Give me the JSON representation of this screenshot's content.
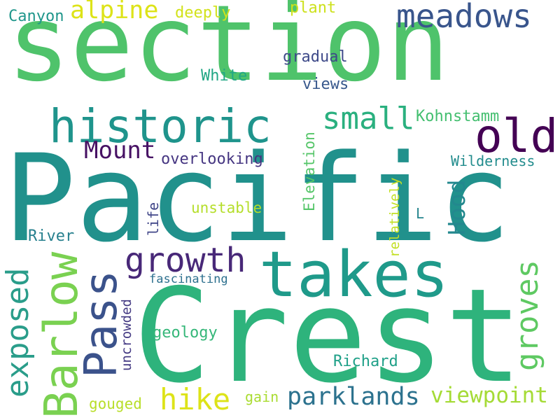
{
  "background": "#ffffff",
  "words": [
    {
      "text": "section",
      "color": "#4fc36b"
    },
    {
      "text": "Pacific",
      "color": "#21918c"
    },
    {
      "text": "Crest",
      "color": "#2eb37c"
    },
    {
      "text": "takes",
      "color": "#1f9a8a"
    },
    {
      "text": "historic",
      "color": "#1f948c"
    },
    {
      "text": "meadows",
      "color": "#39558c"
    },
    {
      "text": "old",
      "color": "#440154"
    },
    {
      "text": "Barlow",
      "color": "#7ad151"
    },
    {
      "text": "Pass",
      "color": "#3b528b"
    },
    {
      "text": "growth",
      "color": "#482878"
    },
    {
      "text": "exposed",
      "color": "#2a9d8a"
    },
    {
      "text": "groves",
      "color": "#5ec962"
    },
    {
      "text": "hike",
      "color": "#dde318"
    },
    {
      "text": "parklands",
      "color": "#2c728e"
    },
    {
      "text": "viewpoint",
      "color": "#a5db36"
    },
    {
      "text": "alpine",
      "color": "#dde318"
    },
    {
      "text": "small",
      "color": "#2ab07f"
    },
    {
      "text": "Mount",
      "color": "#471164"
    },
    {
      "text": "Hood",
      "color": "#23888e"
    },
    {
      "text": "Canyon",
      "color": "#1f968b"
    },
    {
      "text": "deeply",
      "color": "#d2e21b"
    },
    {
      "text": "plant",
      "color": "#cde11d"
    },
    {
      "text": "gradual",
      "color": "#3e4a89"
    },
    {
      "text": "White",
      "color": "#22a785"
    },
    {
      "text": "views",
      "color": "#38588c"
    },
    {
      "text": "Kohnstamm",
      "color": "#44bf70"
    },
    {
      "text": "Elevation",
      "color": "#54c568"
    },
    {
      "text": "overlooking",
      "color": "#453581"
    },
    {
      "text": "Wilderness",
      "color": "#228c8d"
    },
    {
      "text": "relatively",
      "color": "#c2df23"
    },
    {
      "text": "unstable",
      "color": "#b5de2b"
    },
    {
      "text": "life",
      "color": "#404688"
    },
    {
      "text": "L",
      "color": "#25858e"
    },
    {
      "text": "River",
      "color": "#27808e"
    },
    {
      "text": "fascinating",
      "color": "#2d708e"
    },
    {
      "text": "uncrowded",
      "color": "#443a83"
    },
    {
      "text": "geology",
      "color": "#35b779"
    },
    {
      "text": "Richard",
      "color": "#1fa088"
    },
    {
      "text": "gain",
      "color": "#aadc32"
    },
    {
      "text": "gouged",
      "color": "#b8de29"
    }
  ]
}
